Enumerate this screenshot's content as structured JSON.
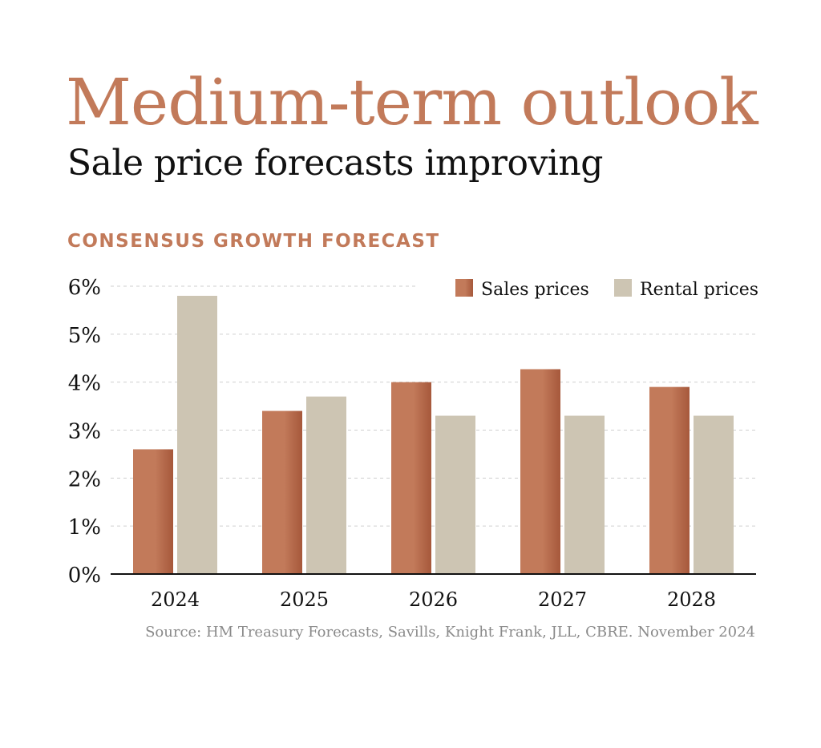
{
  "header": {
    "title": "Medium-term outlook",
    "subtitle": "Sale price forecasts improving",
    "section_label": "CONSENSUS GROWTH FORECAST"
  },
  "colors": {
    "sales": "#c27a5a",
    "sales_dark": "#a6583b",
    "rental": "#cdc5b3",
    "grid": "#cfcfcf",
    "axis": "#111111",
    "text": "#111111"
  },
  "chart_data": {
    "type": "bar",
    "categories": [
      "2024",
      "2025",
      "2026",
      "2027",
      "2028"
    ],
    "series": [
      {
        "name": "Sales prices",
        "values": [
          2.6,
          3.4,
          4.0,
          4.27,
          3.9
        ]
      },
      {
        "name": "Rental prices",
        "values": [
          5.8,
          3.7,
          3.3,
          3.3,
          3.3
        ]
      }
    ],
    "xlabel": "",
    "ylabel": "",
    "ylim": [
      0,
      6
    ],
    "yticks": [
      0,
      1,
      2,
      3,
      4,
      5,
      6
    ],
    "ytick_labels": [
      "0%",
      "1%",
      "2%",
      "3%",
      "4%",
      "5%",
      "6%"
    ],
    "grid": true,
    "legend": "top-right"
  },
  "source": "Source: HM Treasury Forecasts, Savills, Knight Frank, JLL, CBRE. November 2024"
}
